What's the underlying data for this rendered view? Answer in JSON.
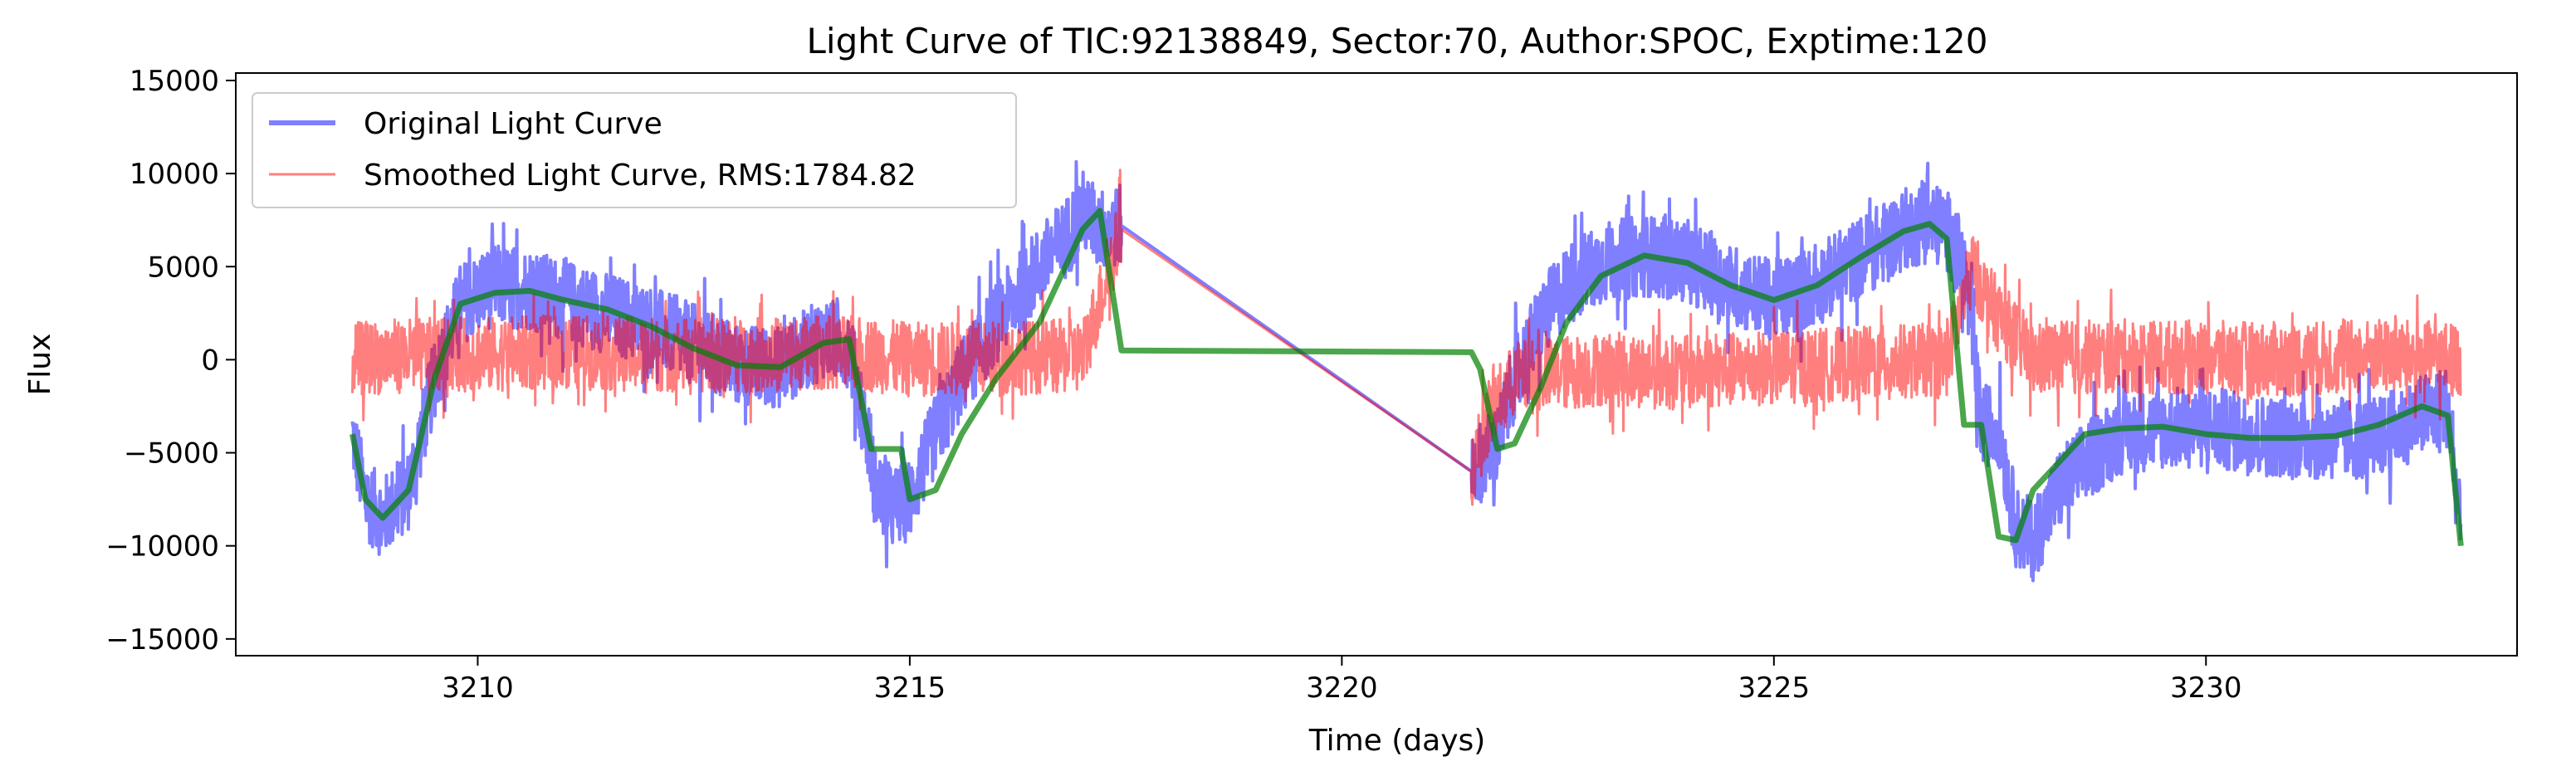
{
  "chart_data": {
    "type": "line",
    "title": "Light Curve of TIC:92138849, Sector:70, Author:SPOC, Exptime:120",
    "xlabel": "Time (days)",
    "ylabel": "Flux",
    "xlim": [
      3207.2,
      3233.6
    ],
    "ylim": [
      -15900,
      15400
    ],
    "x_ticks": [
      3210,
      3215,
      3220,
      3225,
      3230
    ],
    "y_ticks": [
      -15000,
      -10000,
      -5000,
      0,
      5000,
      10000,
      15000
    ],
    "grid": false,
    "legend_position": "upper-left",
    "series": [
      {
        "name": "Original Light Curve",
        "color": "#0000ff",
        "opacity": 0.5,
        "noise": 2200,
        "x": [
          3208.55,
          3208.7,
          3208.9,
          3209.2,
          3209.5,
          3209.8,
          3210.2,
          3210.6,
          3211.0,
          3211.5,
          3212.0,
          3212.5,
          3213.0,
          3213.5,
          3214.0,
          3214.3,
          3214.55,
          3214.6,
          3214.8,
          3215.0,
          3215.3,
          3215.6,
          3216.0,
          3216.5,
          3216.8,
          3217.0,
          3217.2,
          3217.45,
          3221.5,
          3221.6,
          3221.8,
          3222.0,
          3222.3,
          3222.6,
          3223.0,
          3223.5,
          3224.0,
          3224.5,
          3225.0,
          3225.5,
          3226.0,
          3226.5,
          3226.8,
          3227.0,
          3227.2,
          3227.4,
          3227.6,
          3227.8,
          3228.0,
          3228.3,
          3228.6,
          3229.0,
          3229.5,
          3230.0,
          3230.5,
          3231.0,
          3231.5,
          3232.0,
          3232.5,
          3232.8,
          3232.95
        ],
        "y": [
          -4000,
          -7500,
          -8500,
          -7000,
          -1000,
          3000,
          4000,
          3800,
          3200,
          2500,
          1800,
          800,
          -300,
          -400,
          1200,
          700,
          -5000,
          -7000,
          -8000,
          -7500,
          -4000,
          -1000,
          2000,
          5000,
          6500,
          8000,
          7000,
          7200,
          -6000,
          -5500,
          -4500,
          -1000,
          2000,
          4000,
          5200,
          5600,
          5300,
          4000,
          3200,
          4000,
          5500,
          7000,
          7400,
          7000,
          5000,
          -3500,
          -3500,
          -9000,
          -9700,
          -7000,
          -5500,
          -4000,
          -3700,
          -3600,
          -4000,
          -4200,
          -4300,
          -4200,
          -3000,
          -2500,
          -9500
        ]
      },
      {
        "name": "Smoothed Light Curve, RMS:1784.82",
        "color": "#ff0000",
        "opacity": 0.5,
        "noise": 2000,
        "x": [
          3208.55,
          3209.0,
          3210.0,
          3211.0,
          3212.0,
          3213.0,
          3214.0,
          3214.5,
          3215.0,
          3216.0,
          3217.0,
          3217.45,
          3221.5,
          3221.7,
          3222.0,
          3223.0,
          3224.0,
          3225.0,
          3226.0,
          3227.0,
          3227.3,
          3227.5,
          3228.0,
          3229.0,
          3230.0,
          3231.0,
          3232.0,
          3232.95
        ],
        "y": [
          0,
          200,
          300,
          400,
          300,
          200,
          400,
          300,
          0,
          100,
          200,
          7000,
          -6000,
          -3000,
          -1000,
          -500,
          -700,
          -400,
          -200,
          0,
          5000,
          3000,
          0,
          200,
          100,
          0,
          200,
          0
        ]
      },
      {
        "name": "",
        "color": "#008000",
        "opacity": 0.7,
        "noise": 0,
        "x": [
          3208.55,
          3208.7,
          3208.9,
          3209.2,
          3209.5,
          3209.8,
          3210.2,
          3210.6,
          3211.0,
          3211.5,
          3212.0,
          3212.5,
          3213.0,
          3213.5,
          3214.0,
          3214.3,
          3214.55,
          3214.9,
          3215.0,
          3215.3,
          3215.6,
          3216.0,
          3216.5,
          3216.8,
          3217.0,
          3217.2,
          3217.45,
          3221.5,
          3221.6,
          3221.8,
          3222.0,
          3222.3,
          3222.6,
          3223.0,
          3223.5,
          3224.0,
          3224.5,
          3225.0,
          3225.5,
          3226.0,
          3226.5,
          3226.8,
          3227.0,
          3227.2,
          3227.4,
          3227.6,
          3227.8,
          3228.0,
          3228.3,
          3228.6,
          3229.0,
          3229.5,
          3230.0,
          3230.5,
          3231.0,
          3231.5,
          3232.0,
          3232.5,
          3232.8,
          3232.95
        ],
        "y": [
          -4000,
          -7500,
          -8500,
          -7000,
          -1000,
          3000,
          3600,
          3700,
          3200,
          2700,
          1800,
          600,
          -300,
          -400,
          900,
          1100,
          -4800,
          -4800,
          -7500,
          -7000,
          -4000,
          -1000,
          2000,
          5000,
          7000,
          8000,
          500,
          400,
          -500,
          -4800,
          -4500,
          -1500,
          2000,
          4500,
          5600,
          5200,
          4000,
          3200,
          4000,
          5500,
          6900,
          7300,
          6500,
          -3500,
          -3500,
          -9500,
          -9700,
          -7000,
          -5500,
          -4000,
          -3700,
          -3600,
          -4000,
          -4200,
          -4200,
          -4100,
          -3500,
          -2500,
          -3000,
          -10000
        ]
      }
    ]
  }
}
